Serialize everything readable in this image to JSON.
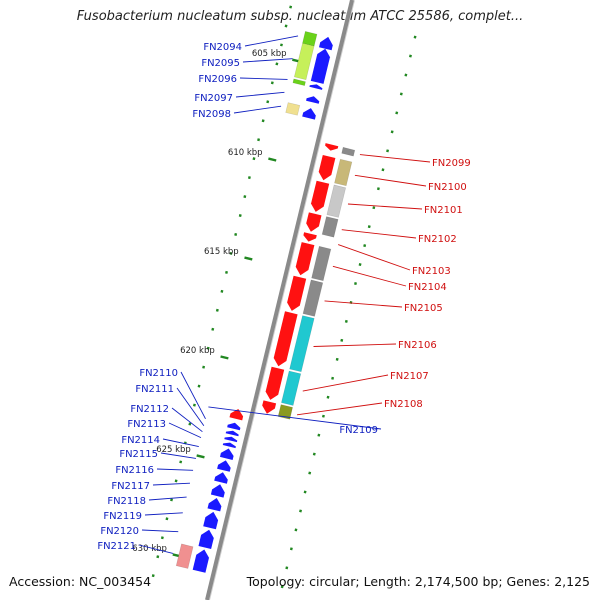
{
  "title": "Fusobacterium nucleatum subsp. nucleatum ATCC 25586, complet...",
  "footer": {
    "accession": "Accession: NC_003454",
    "info": "Topology: circular; Length: 2,174,500 bp; Genes: 2,125"
  },
  "colors": {
    "axis": "#8a8a8a",
    "tick": "#228822",
    "minus_label": "#1020c0",
    "plus_label": "#d01010",
    "minus_gene": "#1a1aff",
    "plus_gene": "#ff1111",
    "green": "#6ad21a",
    "lime": "#c6f05a",
    "tan": "#c8b878",
    "pale_yellow": "#f0e090",
    "gray": "#8a8a8a",
    "light_gray": "#c8c8c8",
    "cyan": "#20c8d0",
    "olive": "#8a9a20",
    "pink": "#f09090"
  },
  "kbp_ticks": [
    {
      "pos": 605,
      "label": "605 kbp"
    },
    {
      "pos": 610,
      "label": "610 kbp"
    },
    {
      "pos": 615,
      "label": "615 kbp"
    },
    {
      "pos": 620,
      "label": "620 kbp"
    },
    {
      "pos": 625,
      "label": "625 kbp"
    },
    {
      "pos": 630,
      "label": "630 kbp"
    }
  ],
  "genes": [
    {
      "name": "FN2094",
      "strand": "-",
      "start": 603.5,
      "end": 604.1
    },
    {
      "name": "FN2095",
      "strand": "-",
      "start": 604.1,
      "end": 605.8
    },
    {
      "name": "FN2096",
      "strand": "-",
      "start": 605.9,
      "end": 606.1
    },
    {
      "name": "FN2097",
      "strand": "-",
      "start": 606.5,
      "end": 606.8
    },
    {
      "name": "FN2098",
      "strand": "-",
      "start": 607.1,
      "end": 607.6
    },
    {
      "name": "FN2099",
      "strand": "+",
      "start": 608.6,
      "end": 608.9
    },
    {
      "name": "FN2100",
      "strand": "+",
      "start": 609.2,
      "end": 610.4
    },
    {
      "name": "FN2101",
      "strand": "+",
      "start": 610.5,
      "end": 612.0
    },
    {
      "name": "FN2102",
      "strand": "+",
      "start": 612.1,
      "end": 613.0
    },
    {
      "name": "FN2103",
      "strand": "+",
      "start": 613.1,
      "end": 613.5
    },
    {
      "name": "FN2104",
      "strand": "+",
      "start": 613.6,
      "end": 615.2
    },
    {
      "name": "FN2105",
      "strand": "+",
      "start": 615.3,
      "end": 617.0
    },
    {
      "name": "FN2106",
      "strand": "+",
      "start": 617.1,
      "end": 619.8
    },
    {
      "name": "FN2107",
      "strand": "+",
      "start": 619.9,
      "end": 621.5
    },
    {
      "name": "FN2108",
      "strand": "+",
      "start": 621.6,
      "end": 622.2
    },
    {
      "name": "FN2109",
      "strand": "-",
      "start": 622.3,
      "end": 622.8
    },
    {
      "name": "FN2110",
      "strand": "-",
      "start": 623.0,
      "end": 623.3
    },
    {
      "name": "FN2111",
      "strand": "-",
      "start": 623.4,
      "end": 623.6
    },
    {
      "name": "FN2112",
      "strand": "-",
      "start": 623.7,
      "end": 623.9
    },
    {
      "name": "FN2113",
      "strand": "-",
      "start": 624.0,
      "end": 624.2
    },
    {
      "name": "FN2114",
      "strand": "-",
      "start": 624.3,
      "end": 624.8
    },
    {
      "name": "FN2115",
      "strand": "-",
      "start": 624.9,
      "end": 625.4
    },
    {
      "name": "FN2116",
      "strand": "-",
      "start": 625.5,
      "end": 626.0
    },
    {
      "name": "FN2117",
      "strand": "-",
      "start": 626.1,
      "end": 626.7
    },
    {
      "name": "FN2118",
      "strand": "-",
      "start": 626.8,
      "end": 627.4
    },
    {
      "name": "FN2119",
      "strand": "-",
      "start": 627.5,
      "end": 628.3
    },
    {
      "name": "FN2120",
      "strand": "-",
      "start": 628.4,
      "end": 629.3
    },
    {
      "name": "FN2121",
      "strand": "-",
      "start": 629.4,
      "end": 630.5
    }
  ]
}
